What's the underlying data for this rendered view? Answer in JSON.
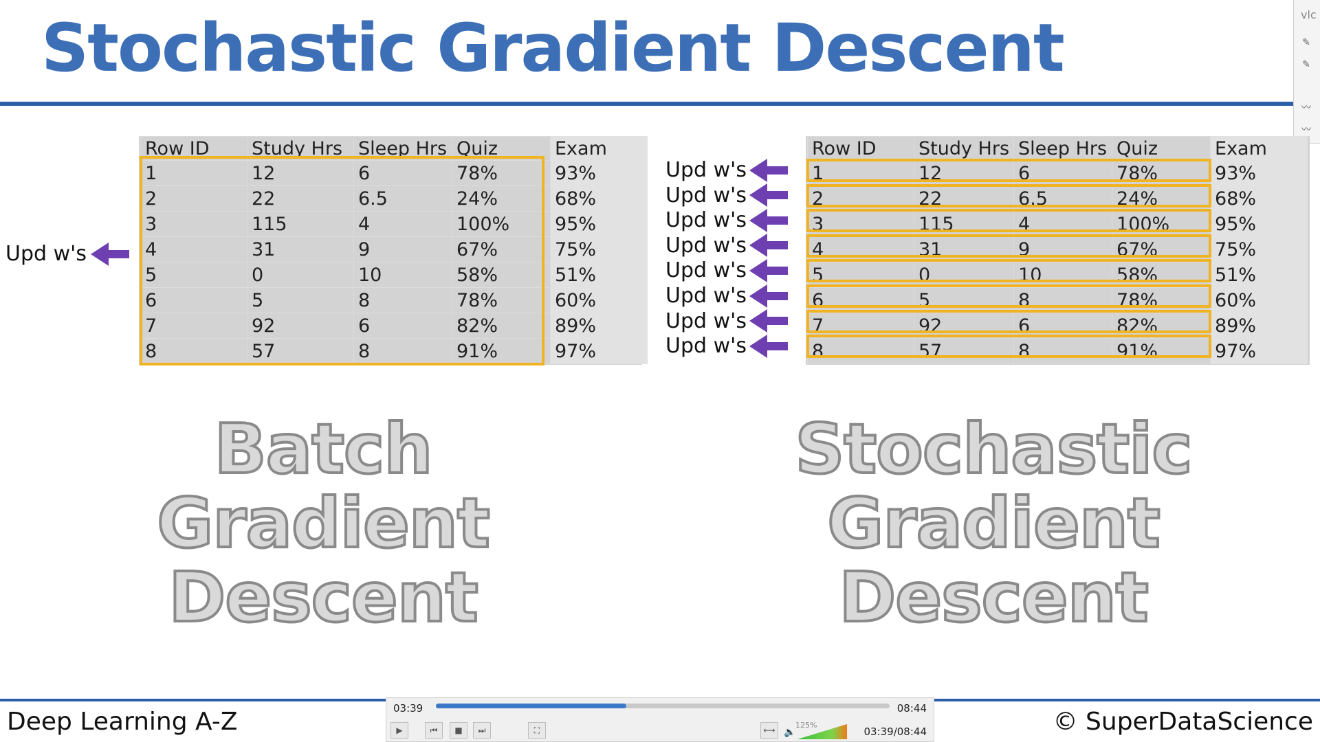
{
  "title": "Stochastic Gradient Descent",
  "vlc_label": "vlc",
  "table": {
    "headers": [
      "Row ID",
      "Study Hrs",
      "Sleep Hrs",
      "Quiz",
      "Exam"
    ],
    "rows": [
      [
        "1",
        "12",
        "6",
        "78%",
        "93%"
      ],
      [
        "2",
        "22",
        "6.5",
        "24%",
        "68%"
      ],
      [
        "3",
        "115",
        "4",
        "100%",
        "95%"
      ],
      [
        "4",
        "31",
        "9",
        "67%",
        "75%"
      ],
      [
        "5",
        "0",
        "10",
        "58%",
        "51%"
      ],
      [
        "6",
        "5",
        "8",
        "78%",
        "60%"
      ],
      [
        "7",
        "92",
        "6",
        "82%",
        "89%"
      ],
      [
        "8",
        "57",
        "8",
        "91%",
        "97%"
      ]
    ]
  },
  "upd_label": "Upd w's",
  "batch": {
    "line1": "Batch",
    "line2": "Gradient",
    "line3": "Descent"
  },
  "stochastic": {
    "line1": "Stochastic",
    "line2": "Gradient",
    "line3": "Descent"
  },
  "footer": {
    "left": "Deep Learning A-Z",
    "right": "© SuperDataScience"
  },
  "player": {
    "elapsed": "03:39",
    "total": "08:44",
    "combined": "03:39/08:44",
    "progress_fraction": 0.42,
    "volume_label": "125%",
    "volume_fraction": 1.0,
    "icons": [
      "play-icon",
      "prev-icon",
      "stop-icon",
      "next-icon",
      "fullscreen-icon",
      "extended-icon",
      "speaker-icon"
    ]
  }
}
